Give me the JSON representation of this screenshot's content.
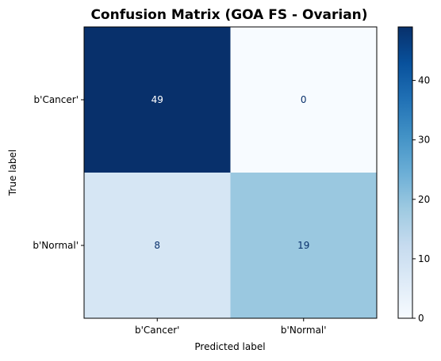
{
  "chart_data": {
    "type": "heatmap",
    "title": "Confusion Matrix (GOA FS - Ovarian)",
    "xlabel": "Predicted label",
    "ylabel": "True label",
    "x_categories": [
      "b'Cancer'",
      "b'Normal'"
    ],
    "y_categories": [
      "b'Cancer'",
      "b'Normal'"
    ],
    "matrix": [
      [
        49,
        0
      ],
      [
        8,
        19
      ]
    ],
    "colormap": "Blues",
    "colorbar": {
      "min": 0,
      "max": 49,
      "ticks": [
        0,
        10,
        20,
        30,
        40
      ],
      "tick_labels": [
        "0",
        "10",
        "20",
        "30",
        "40"
      ]
    },
    "colors": {
      "cell_0_0": "#08306b",
      "cell_0_1": "#f7fbff",
      "cell_1_0": "#d6e6f4",
      "cell_1_1": "#9ac8e0",
      "text_on_dark": "#ffffff",
      "text_on_light": "#08306b"
    }
  }
}
